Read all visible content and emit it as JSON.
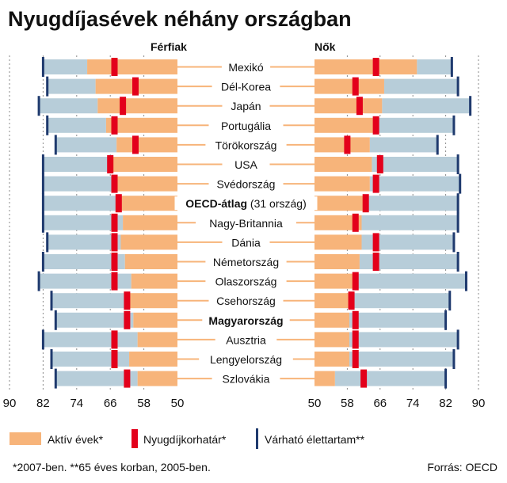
{
  "title": "Nyugdíjasévek néhány országban",
  "colors": {
    "active": "#f7b47a",
    "retired": "#b7cdd9",
    "retirement_age": "#e3001b",
    "life_expectancy": "#1f3a6e",
    "connector": "#f7b47a",
    "grid": "#8a8a8a"
  },
  "chart_data": {
    "type": "bar",
    "title": "Nyugdíjasévek néhány országban",
    "panels": [
      "Férfiak",
      "Nők"
    ],
    "x_ticks_left": [
      "90",
      "82",
      "74",
      "66",
      "58",
      "50"
    ],
    "x_ticks_right": [
      "50",
      "58",
      "66",
      "74",
      "82",
      "90"
    ],
    "xlim": [
      50,
      90
    ],
    "countries": [
      {
        "name": "Mexikó",
        "bold": false,
        "men": {
          "active_until": 71.5,
          "retirement_age": 65,
          "life_expectancy": 82
        },
        "women": {
          "active_until": 75,
          "retirement_age": 65,
          "life_expectancy": 83.5
        }
      },
      {
        "name": "Dél-Korea",
        "bold": false,
        "men": {
          "active_until": 69.5,
          "retirement_age": 60,
          "life_expectancy": 81
        },
        "women": {
          "active_until": 67,
          "retirement_age": 60,
          "life_expectancy": 85
        }
      },
      {
        "name": "Japán",
        "bold": false,
        "men": {
          "active_until": 69,
          "retirement_age": 63,
          "life_expectancy": 83
        },
        "women": {
          "active_until": 66.5,
          "retirement_age": 61,
          "life_expectancy": 88
        }
      },
      {
        "name": "Portugália",
        "bold": false,
        "men": {
          "active_until": 67,
          "retirement_age": 65,
          "life_expectancy": 81
        },
        "women": {
          "active_until": 65.5,
          "retirement_age": 65,
          "life_expectancy": 84
        }
      },
      {
        "name": "Törökország",
        "bold": false,
        "men": {
          "active_until": 64.5,
          "retirement_age": 60,
          "life_expectancy": 79
        },
        "women": {
          "active_until": 63.5,
          "retirement_age": 58,
          "life_expectancy": 80
        }
      },
      {
        "name": "USA",
        "bold": false,
        "men": {
          "active_until": 65.5,
          "retirement_age": 66,
          "life_expectancy": 82
        },
        "women": {
          "active_until": 64,
          "retirement_age": 66,
          "life_expectancy": 85
        }
      },
      {
        "name": "Svédország",
        "bold": false,
        "men": {
          "active_until": 65.5,
          "retirement_age": 65,
          "life_expectancy": 82
        },
        "women": {
          "active_until": 63.5,
          "retirement_age": 65,
          "life_expectancy": 85.5
        }
      },
      {
        "name": "OECD-átlag",
        "suffix": " (31 ország)",
        "bold": true,
        "men": {
          "active_until": 63.5,
          "retirement_age": 64,
          "life_expectancy": 82
        },
        "women": {
          "active_until": 63,
          "retirement_age": 62.5,
          "life_expectancy": 85
        }
      },
      {
        "name": "Nagy-Britannia",
        "bold": false,
        "men": {
          "active_until": 63,
          "retirement_age": 65,
          "life_expectancy": 82
        },
        "women": {
          "active_until": 61.5,
          "retirement_age": 60,
          "life_expectancy": 85
        }
      },
      {
        "name": "Dánia",
        "bold": false,
        "men": {
          "active_until": 63.5,
          "retirement_age": 65,
          "life_expectancy": 81
        },
        "women": {
          "active_until": 61.5,
          "retirement_age": 65,
          "life_expectancy": 84
        }
      },
      {
        "name": "Németország",
        "bold": false,
        "men": {
          "active_until": 62.5,
          "retirement_age": 65,
          "life_expectancy": 82
        },
        "women": {
          "active_until": 61,
          "retirement_age": 65,
          "life_expectancy": 85
        }
      },
      {
        "name": "Olaszország",
        "bold": false,
        "men": {
          "active_until": 61,
          "retirement_age": 65,
          "life_expectancy": 83
        },
        "women": {
          "active_until": 60,
          "retirement_age": 60,
          "life_expectancy": 87
        }
      },
      {
        "name": "Csehország",
        "bold": false,
        "men": {
          "active_until": 62.5,
          "retirement_age": 62,
          "life_expectancy": 80
        },
        "women": {
          "active_until": 58.5,
          "retirement_age": 59,
          "life_expectancy": 83
        }
      },
      {
        "name": "Magyarország",
        "bold": true,
        "men": {
          "active_until": 60.5,
          "retirement_age": 62,
          "life_expectancy": 79
        },
        "women": {
          "active_until": 58.5,
          "retirement_age": 60,
          "life_expectancy": 82
        }
      },
      {
        "name": "Ausztria",
        "bold": false,
        "men": {
          "active_until": 59.5,
          "retirement_age": 65,
          "life_expectancy": 82
        },
        "women": {
          "active_until": 58.5,
          "retirement_age": 60,
          "life_expectancy": 85
        }
      },
      {
        "name": "Lengyelország",
        "bold": false,
        "men": {
          "active_until": 61.5,
          "retirement_age": 65,
          "life_expectancy": 80
        },
        "women": {
          "active_until": 58.5,
          "retirement_age": 60,
          "life_expectancy": 84
        }
      },
      {
        "name": "Szlovákia",
        "bold": false,
        "men": {
          "active_until": 59.5,
          "retirement_age": 62,
          "life_expectancy": 79
        },
        "women": {
          "active_until": 55,
          "retirement_age": 62,
          "life_expectancy": 82
        }
      }
    ]
  },
  "legend": {
    "active": "Aktív évek*",
    "retirement_age": "Nyugdíjkorhatár*",
    "life_expectancy": "Várható élettartam**"
  },
  "footnote": "*2007-ben.  **65 éves korban, 2005-ben.",
  "source": "Forrás: OECD"
}
